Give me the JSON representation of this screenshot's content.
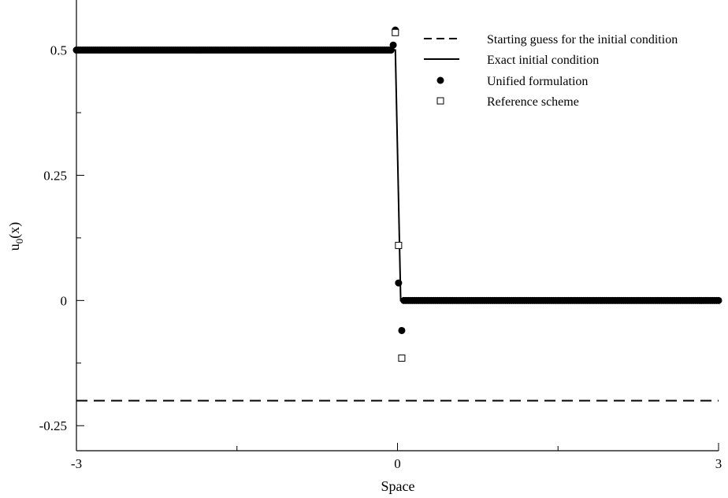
{
  "chart_data": {
    "type": "scatter",
    "title": "",
    "xlabel": "Space",
    "ylabel": "u",
    "ylabel_subscript": "0",
    "ylabel_suffix": "(x)",
    "xlim": [
      -3,
      3
    ],
    "ylim": [
      -0.3,
      0.6
    ],
    "xticks": [
      -3,
      0,
      3
    ],
    "xtick_labels": [
      "-3",
      "0",
      "3"
    ],
    "xminor_ticks": [
      -1.5,
      1.5
    ],
    "yticks": [
      -0.25,
      0,
      0.25,
      0.5
    ],
    "ytick_labels": [
      "-0.25",
      "0",
      "0.25",
      "0.5"
    ],
    "grid": false,
    "legend_position": "top-right",
    "series": [
      {
        "name": "Starting guess for the initial condition",
        "style": "dashed-line",
        "x": [
          -3,
          3
        ],
        "y": [
          -0.2,
          -0.2
        ]
      },
      {
        "name": "Exact initial condition",
        "style": "solid-line",
        "x": [
          -3,
          -0.02,
          0.03,
          3
        ],
        "y": [
          0.5,
          0.5,
          0,
          0
        ]
      },
      {
        "name": "Unified formulation",
        "style": "filled-circle",
        "plateau_left": {
          "x_from": -3,
          "x_to": -0.06,
          "y": 0.5,
          "count": 150
        },
        "plateau_right": {
          "x_from": 0.06,
          "x_to": 3,
          "y": 0,
          "count": 150
        },
        "points": [
          {
            "x": -0.04,
            "y": 0.51
          },
          {
            "x": -0.02,
            "y": 0.54
          },
          {
            "x": 0.01,
            "y": 0.035
          },
          {
            "x": 0.04,
            "y": -0.06
          }
        ]
      },
      {
        "name": "Reference scheme",
        "style": "open-square",
        "points": [
          {
            "x": -0.02,
            "y": 0.535
          },
          {
            "x": 0.01,
            "y": 0.11
          },
          {
            "x": 0.04,
            "y": -0.115
          }
        ]
      }
    ]
  }
}
